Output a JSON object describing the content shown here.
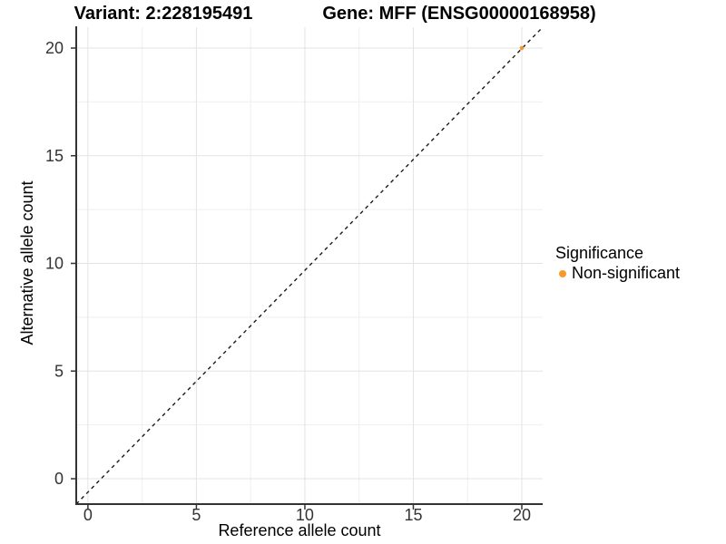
{
  "chart_data": {
    "type": "scatter",
    "titles": [
      "Variant: 2:228195491",
      "Gene: MFF (ENSG00000168958)"
    ],
    "xlabel": "Reference allele count",
    "ylabel": "Alternative allele count",
    "xticks": [
      0,
      5,
      10,
      15,
      20
    ],
    "yticks": [
      0,
      5,
      10,
      15,
      20
    ],
    "xlim": [
      -0.55,
      21
    ],
    "ylim": [
      -1.2,
      21
    ],
    "grid": {
      "major": true,
      "minor": true
    },
    "reference_line": {
      "equation": "y = x",
      "style": "dashed",
      "color": "#1A1A1A"
    },
    "series": [
      {
        "name": "Non-significant",
        "color": "#F9992B",
        "marker": "circle",
        "points": [
          {
            "x": 20,
            "y": 20
          }
        ]
      }
    ],
    "legend": {
      "title": "Significance",
      "position": "right",
      "items": [
        {
          "label": "Non-significant",
          "color": "#F9992B"
        }
      ]
    }
  },
  "style_colors": {
    "axis_line": "#333333",
    "tick_label": "#333333",
    "grid_major": "#E3E3E3",
    "grid_minor": "#EFEFEF"
  }
}
